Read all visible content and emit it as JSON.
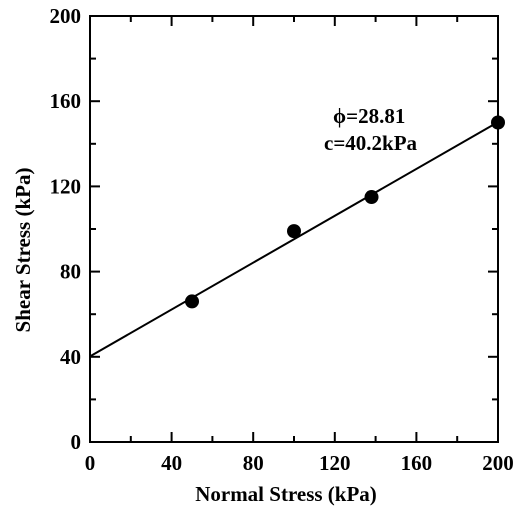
{
  "chart_data": {
    "type": "scatter",
    "xlabel": "Normal Stress (kPa)",
    "ylabel": "Shear Stress (kPa)",
    "xlim": [
      0,
      200
    ],
    "ylim": [
      0,
      200
    ],
    "xticks": [
      0,
      40,
      80,
      120,
      160,
      200
    ],
    "yticks": [
      0,
      40,
      80,
      120,
      160,
      200
    ],
    "grid": false,
    "series": [
      {
        "points": [
          {
            "x": 50,
            "y": 66
          },
          {
            "x": 100,
            "y": 99
          },
          {
            "x": 138,
            "y": 115
          },
          {
            "x": 200,
            "y": 150
          }
        ]
      }
    ],
    "fit_line": {
      "x": [
        0,
        200
      ],
      "y": [
        40.2,
        150.2
      ]
    },
    "annotations": [
      "ϕ=28.81",
      "c=40.2kPa"
    ]
  }
}
